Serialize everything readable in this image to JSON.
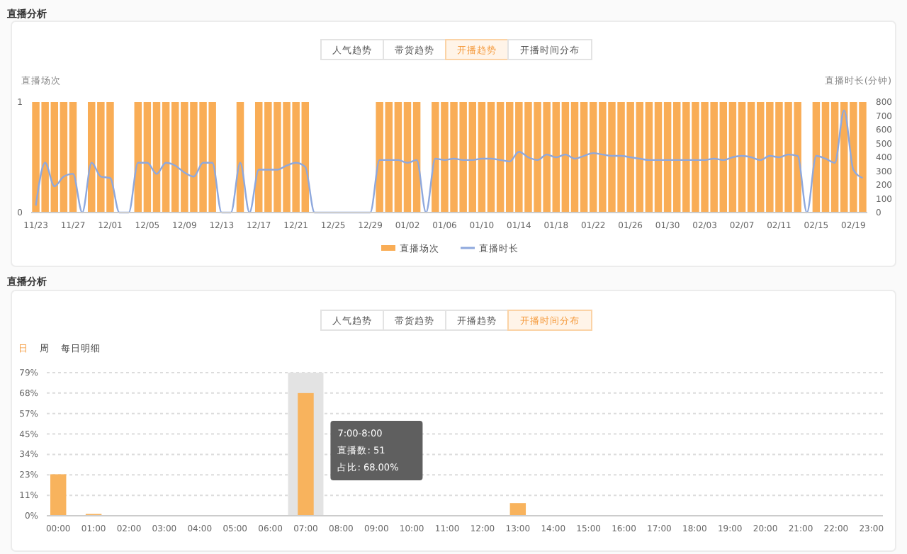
{
  "chart_data": [
    {
      "type": "bar",
      "title": "直播分析",
      "ylabel": "直播场次",
      "y2label": "直播时长(分钟)",
      "legend": "bottom",
      "grid": false,
      "categories": [
        "11/23",
        null,
        null,
        null,
        "11/27",
        null,
        null,
        null,
        "12/01",
        null,
        null,
        null,
        "12/05",
        null,
        null,
        null,
        "12/09",
        null,
        null,
        null,
        "12/13",
        null,
        null,
        null,
        "12/17",
        null,
        null,
        null,
        "12/21",
        null,
        null,
        null,
        "12/25",
        null,
        null,
        null,
        "12/29",
        null,
        null,
        null,
        "01/02",
        null,
        null,
        null,
        "01/06",
        null,
        null,
        null,
        "01/10",
        null,
        null,
        null,
        "01/14",
        null,
        null,
        null,
        "01/18",
        null,
        null,
        null,
        "01/22",
        null,
        null,
        null,
        "01/26",
        null,
        null,
        null,
        "01/30",
        null,
        null,
        null,
        "02/03",
        null,
        null,
        null,
        "02/07",
        null,
        null,
        null,
        "02/11",
        null,
        null,
        null,
        "02/15",
        null,
        null,
        null,
        "02/19",
        null
      ],
      "ylim": [
        0,
        1
      ],
      "yticks": [
        0,
        1
      ],
      "y2lim": [
        0,
        800
      ],
      "y2ticks": [
        0,
        100,
        200,
        300,
        400,
        500,
        600,
        700,
        800
      ],
      "series": [
        {
          "name": "直播场次",
          "color": "#f9ad56",
          "values": [
            1,
            1,
            1,
            1,
            1,
            0,
            1,
            1,
            1,
            0,
            0,
            1,
            1,
            1,
            1,
            1,
            1,
            1,
            1,
            1,
            0,
            0,
            1,
            0,
            1,
            1,
            1,
            1,
            1,
            1,
            0,
            0,
            0,
            0,
            0,
            0,
            0,
            1,
            1,
            1,
            1,
            1,
            0,
            1,
            1,
            1,
            1,
            1,
            1,
            1,
            1,
            1,
            1,
            1,
            1,
            1,
            1,
            1,
            1,
            1,
            1,
            1,
            1,
            1,
            1,
            1,
            1,
            1,
            1,
            1,
            1,
            1,
            1,
            1,
            1,
            1,
            1,
            1,
            1,
            1,
            1,
            1,
            1,
            0,
            1,
            1,
            1,
            1,
            1,
            1
          ]
        },
        {
          "name": "直播时长",
          "type": "line",
          "axis": "y2",
          "color": "#8ea8dd",
          "marker": "none",
          "values": [
            50,
            360,
            190,
            260,
            280,
            0,
            360,
            260,
            250,
            0,
            0,
            360,
            360,
            280,
            360,
            340,
            290,
            260,
            360,
            360,
            0,
            0,
            360,
            0,
            310,
            310,
            310,
            340,
            360,
            330,
            0,
            0,
            0,
            0,
            0,
            0,
            0,
            380,
            380,
            380,
            360,
            380,
            0,
            390,
            380,
            390,
            380,
            380,
            390,
            390,
            380,
            370,
            440,
            400,
            380,
            420,
            400,
            420,
            390,
            410,
            430,
            420,
            410,
            410,
            400,
            390,
            380,
            380,
            380,
            380,
            380,
            380,
            380,
            390,
            380,
            400,
            410,
            400,
            380,
            410,
            400,
            420,
            410,
            0,
            410,
            390,
            360,
            740,
            310,
            250
          ]
        }
      ],
      "annotations": [
        "人气趋势",
        "带货趋势",
        "开播趋势",
        "开播时间分布"
      ]
    },
    {
      "type": "bar",
      "title": "直播分析",
      "grid": "y",
      "color": "#f8b35d",
      "categories": [
        "00:00",
        "01:00",
        "02:00",
        "03:00",
        "04:00",
        "05:00",
        "06:00",
        "07:00",
        "08:00",
        "09:00",
        "10:00",
        "11:00",
        "12:00",
        "13:00",
        "14:00",
        "15:00",
        "16:00",
        "17:00",
        "18:00",
        "19:00",
        "20:00",
        "21:00",
        "22:00",
        "23:00"
      ],
      "values": [
        23,
        1,
        0,
        0,
        0,
        0,
        0,
        68,
        0,
        0,
        0,
        0,
        0,
        7,
        0,
        0,
        0,
        0,
        0,
        0,
        0,
        0,
        0,
        0
      ],
      "ylim": [
        0,
        79.33
      ],
      "yticks": [
        {
          "value": 0,
          "label": "0%"
        },
        {
          "value": 11.33,
          "label": "11%"
        },
        {
          "value": 22.67,
          "label": "23%"
        },
        {
          "value": 34,
          "label": "34%"
        },
        {
          "value": 45.33,
          "label": "45%"
        },
        {
          "value": 56.67,
          "label": "57%"
        },
        {
          "value": 68,
          "label": "68%"
        },
        {
          "value": 79.33,
          "label": "79%"
        }
      ],
      "bands": [
        {
          "axis": "x",
          "from": "07:00",
          "to": "07:00",
          "color": "#e3e3e3"
        }
      ],
      "annotations": [
        "人气趋势",
        "带货趋势",
        "开播趋势",
        "开播时间分布",
        "日",
        "周",
        "每日明细",
        "7:00-8:00\n直播数: 51\n占比: 68.00%"
      ]
    }
  ]
}
